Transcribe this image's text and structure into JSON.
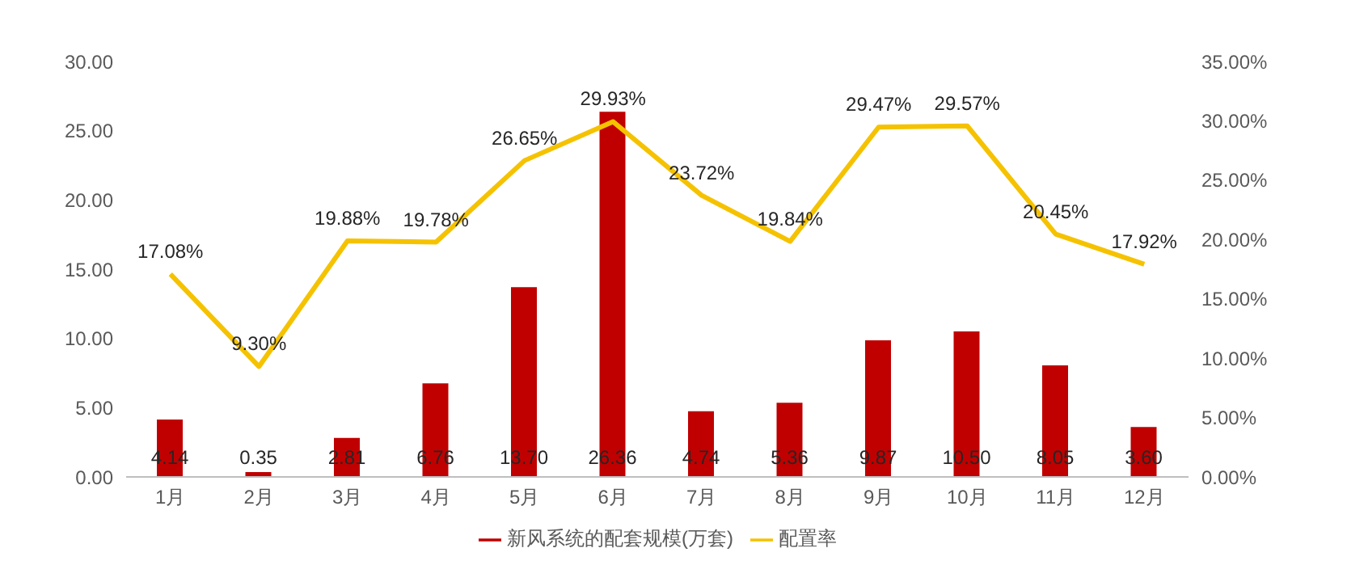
{
  "chart_data": {
    "type": "bar",
    "categories": [
      "1月",
      "2月",
      "3月",
      "4月",
      "5月",
      "6月",
      "7月",
      "8月",
      "9月",
      "10月",
      "11月",
      "12月"
    ],
    "series": [
      {
        "name": "新风系统的配套规模(万套)",
        "color": "#c00000",
        "values": [
          4.14,
          0.35,
          2.81,
          6.76,
          13.7,
          26.36,
          4.74,
          5.36,
          9.87,
          10.5,
          8.05,
          3.6
        ],
        "value_labels": [
          "4.14",
          "0.35",
          "2.81",
          "6.76",
          "13.70",
          "26.36",
          "4.74",
          "5.36",
          "9.87",
          "10.50",
          "8.05",
          "3.60"
        ]
      },
      {
        "name": "配置率",
        "type": "line",
        "axis": "y2",
        "color": "#f5c200",
        "values": [
          17.08,
          9.3,
          19.88,
          19.78,
          26.65,
          29.93,
          23.72,
          19.84,
          29.47,
          29.57,
          20.45,
          17.92
        ],
        "value_labels": [
          "17.08%",
          "9.30%",
          "19.88%",
          "19.78%",
          "26.65%",
          "29.93%",
          "23.72%",
          "19.84%",
          "29.47%",
          "29.57%",
          "20.45%",
          "17.92%"
        ]
      }
    ],
    "ylim": [
      0,
      30
    ],
    "yticks": [
      {
        "value": 0,
        "label": "0.00"
      },
      {
        "value": 5,
        "label": "5.00"
      },
      {
        "value": 10,
        "label": "10.00"
      },
      {
        "value": 15,
        "label": "15.00"
      },
      {
        "value": 20,
        "label": "20.00"
      },
      {
        "value": 25,
        "label": "25.00"
      },
      {
        "value": 30,
        "label": "30.00"
      }
    ],
    "y2lim": [
      0,
      35
    ],
    "y2ticks": [
      {
        "value": 0,
        "label": "0.00%"
      },
      {
        "value": 5,
        "label": "5.00%"
      },
      {
        "value": 10,
        "label": "10.00%"
      },
      {
        "value": 15,
        "label": "15.00%"
      },
      {
        "value": 20,
        "label": "20.00%"
      },
      {
        "value": 25,
        "label": "25.00%"
      },
      {
        "value": 30,
        "label": "30.00%"
      },
      {
        "value": 35,
        "label": "35.00%"
      }
    ],
    "grid": false,
    "legend": "bottom",
    "marker": "none"
  }
}
